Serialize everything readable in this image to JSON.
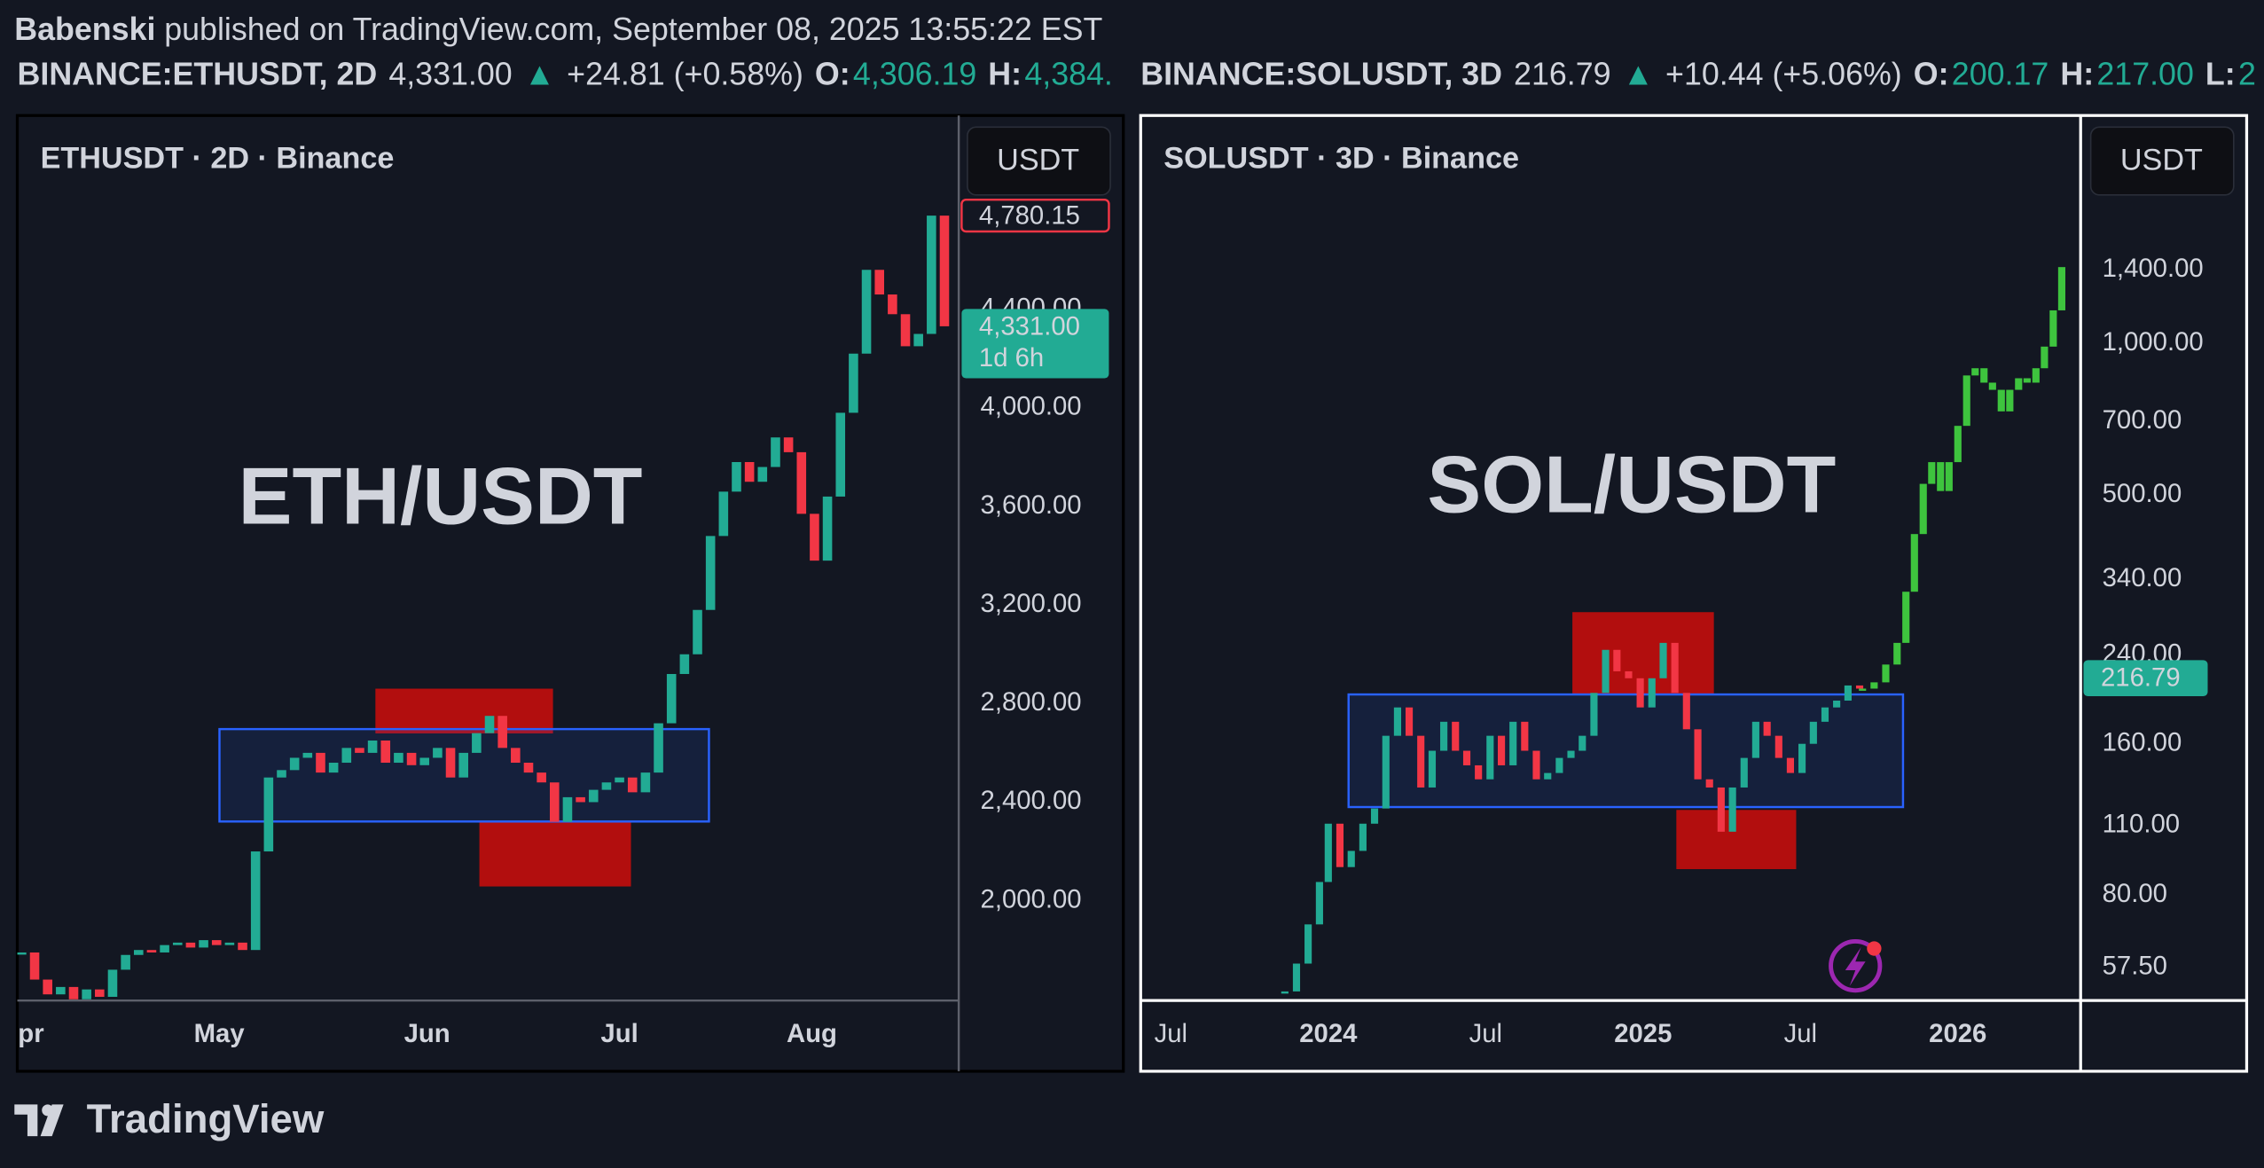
{
  "header": {
    "author": "Babenski",
    "published": "published on TradingView.com, September 08, 2025 13:55:22 EST"
  },
  "chart_data": [
    {
      "type": "candlestick",
      "symbol_bar": {
        "symbol": "BINANCE:ETHUSDT, 2D",
        "last": "4,331.00",
        "arrow": "▲",
        "change": "+24.81 (+0.58%)",
        "open_label": "O:",
        "open": "4,306.19",
        "high_label": "H:",
        "high": "4,384."
      },
      "title": "ETHUSDT · 2D · Binance",
      "currency": "USDT",
      "annotation": "ETH/USDT",
      "up_color": "#22ab94",
      "down_color": "#f23645",
      "series": [
        {
          "values": [
            1790,
            1680,
            1620,
            1650,
            1600,
            1640,
            1610,
            1720,
            1780,
            1800,
            1790,
            1820,
            1830,
            1810,
            1840,
            1820,
            1830,
            1800,
            2200,
            2500,
            2530,
            2580,
            2600,
            2520,
            2560,
            2620,
            2600,
            2650,
            2560,
            2600,
            2550,
            2580,
            2620,
            2500,
            2600,
            2680,
            2750,
            2620,
            2560,
            2520,
            2480,
            2320,
            2420,
            2400,
            2450,
            2480,
            2500,
            2440,
            2520,
            2720,
            2920,
            3000,
            3180,
            3480,
            3660,
            3780,
            3700,
            3760,
            3880,
            3820,
            3570,
            3380,
            3640,
            3980,
            4220,
            4560,
            4460,
            4380,
            4250,
            4300,
            4780,
            4331
          ]
        }
      ],
      "xlim": [
        -0.33,
        72.1
      ],
      "xticks": [
        {
          "value": 0,
          "label": "Apr"
        },
        {
          "value": 15.2,
          "label": "May"
        },
        {
          "value": 31.2,
          "label": "Jun"
        },
        {
          "value": 46,
          "label": "Jul"
        },
        {
          "value": 60.8,
          "label": "Aug"
        }
      ],
      "ylim": [
        1595,
        5157
      ],
      "yticks": [
        {
          "value": 2000,
          "label": "2,000.00"
        },
        {
          "value": 2400,
          "label": "2,400.00"
        },
        {
          "value": 2800,
          "label": "2,800.00"
        },
        {
          "value": 3200,
          "label": "3,200.00"
        },
        {
          "value": 3600,
          "label": "3,600.00"
        },
        {
          "value": 4000,
          "label": "4,000.00"
        },
        {
          "value": 4400,
          "label": "4,400.00"
        }
      ],
      "high_marker": {
        "value": 4780.15,
        "label": "4,780.15"
      },
      "last_price": {
        "value": 4331,
        "label": "4,331.00"
      },
      "countdown": "1d 6h"
    },
    {
      "type": "candlestick",
      "log_scale": true,
      "symbol_bar": {
        "symbol": "BINANCE:SOLUSDT, 3D",
        "last": "216.79",
        "arrow": "▲",
        "change": "+10.44 (+5.06%)",
        "open_label": "O:",
        "open": "200.17",
        "high_label": "H:",
        "high": "217.00",
        "low_label": "L:",
        "low": "2"
      },
      "title": "SOLUSDT · 3D · Binance",
      "currency": "USDT",
      "annotation": "SOL/USDT",
      "up_color": "#22ab94",
      "down_color": "#f23645",
      "series": [
        {
          "x": [
            2023.862,
            2023.899,
            2023.936,
            2023.972,
            2024,
            2024.037,
            2024.073,
            2024.11,
            2024.147,
            2024.183,
            2024.22,
            2024.257,
            2024.294,
            2024.33,
            2024.367,
            2024.404,
            2024.44,
            2024.477,
            2024.514,
            2024.55,
            2024.587,
            2024.624,
            2024.661,
            2024.697,
            2024.734,
            2024.771,
            2024.807,
            2024.844,
            2024.881,
            2024.917,
            2024.954,
            2024.991,
            2025.028,
            2025.064,
            2025.101,
            2025.138,
            2025.174,
            2025.211,
            2025.248,
            2025.284,
            2025.321,
            2025.358,
            2025.394,
            2025.431,
            2025.468,
            2025.505,
            2025.541,
            2025.578,
            2025.615,
            2025.651,
            2025.688
          ],
          "values": [
            51.5,
            58.5,
            70,
            85,
            111,
            91,
            98,
            111,
            119,
            166,
            189,
            166,
            131,
            155,
            177,
            155,
            145,
            136,
            166,
            145,
            177,
            155,
            136,
            140,
            150,
            155,
            166,
            202,
            246,
            223,
            216,
            189,
            216,
            254,
            202,
            171,
            136,
            131,
            107,
            131,
            150,
            177,
            166,
            150,
            140,
            160,
            177,
            189,
            195,
            209,
            206
          ]
        },
        {
          "color": "#3ec43e",
          "x": [
            2025.697,
            2025.734,
            2025.771,
            2025.807,
            2025.835,
            2025.862,
            2025.89,
            2025.917,
            2025.945,
            2025.972,
            2026,
            2026.028,
            2026.055,
            2026.083,
            2026.11,
            2026.138,
            2026.165,
            2026.193,
            2026.22,
            2026.248,
            2026.275,
            2026.303,
            2026.33
          ],
          "values": [
            206,
            212,
            230,
            254,
            321,
            418,
            526,
            581,
            509,
            581,
            686,
            864,
            893,
            836,
            809,
            733,
            809,
            853,
            836,
            893,
            986,
            1164,
            1419
          ]
        }
      ],
      "xlim": [
        2023.404,
        2026.39
      ],
      "xticks": [
        {
          "value": 2023.5,
          "label": "Jul"
        },
        2024,
        {
          "value": 2024.5,
          "label": "Jul"
        },
        2025,
        {
          "value": 2025.5,
          "label": "Jul"
        },
        2026
      ],
      "ylim": [
        49.4,
        2748
      ],
      "yticks": [
        {
          "value": 57.5,
          "label": "57.50"
        },
        {
          "value": 80,
          "label": "80.00"
        },
        {
          "value": 110,
          "label": "110.00"
        },
        {
          "value": 160,
          "label": "160.00"
        },
        {
          "value": 240,
          "label": "240.00"
        },
        {
          "value": 340,
          "label": "340.00"
        },
        {
          "value": 500,
          "label": "500.00"
        },
        {
          "value": 700,
          "label": "700.00"
        },
        {
          "value": 1000,
          "label": "1,000.00"
        },
        {
          "value": 1400,
          "label": "1,400.00"
        }
      ],
      "last_price": {
        "value": 216.79,
        "label": "216.79"
      }
    }
  ],
  "footer": {
    "brand": "TradingView"
  }
}
